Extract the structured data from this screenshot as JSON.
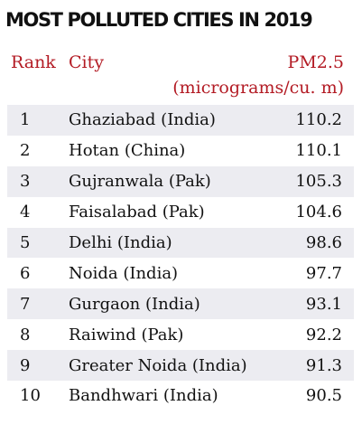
{
  "title": "MOST POLLUTED CITIES IN 2019",
  "headers": {
    "rank": "Rank",
    "city": "City",
    "pm": "PM2.5",
    "unit": "(micrograms/cu. m)"
  },
  "colors": {
    "header_text": "#b31b24",
    "row_shade": "#ececf1",
    "text": "#111111"
  },
  "chart_data": {
    "type": "table",
    "title": "MOST POLLUTED CITIES IN 2019",
    "columns": [
      "Rank",
      "City",
      "PM2.5 (micrograms/cu. m)"
    ],
    "rows": [
      {
        "rank": "1",
        "city": "Ghaziabad (India)",
        "value": "110.2"
      },
      {
        "rank": "2",
        "city": "Hotan (China)",
        "value": "110.1"
      },
      {
        "rank": "3",
        "city": "Gujranwala (Pak)",
        "value": "105.3"
      },
      {
        "rank": "4",
        "city": "Faisalabad (Pak)",
        "value": "104.6"
      },
      {
        "rank": "5",
        "city": "Delhi (India)",
        "value": "98.6"
      },
      {
        "rank": "6",
        "city": "Noida (India)",
        "value": "97.7"
      },
      {
        "rank": "7",
        "city": "Gurgaon (India)",
        "value": "93.1"
      },
      {
        "rank": "8",
        "city": "Raiwind (Pak)",
        "value": "92.2"
      },
      {
        "rank": "9",
        "city": "Greater Noida (India)",
        "value": "91.3"
      },
      {
        "rank": "10",
        "city": "Bandhwari (India)",
        "value": "90.5"
      }
    ]
  }
}
